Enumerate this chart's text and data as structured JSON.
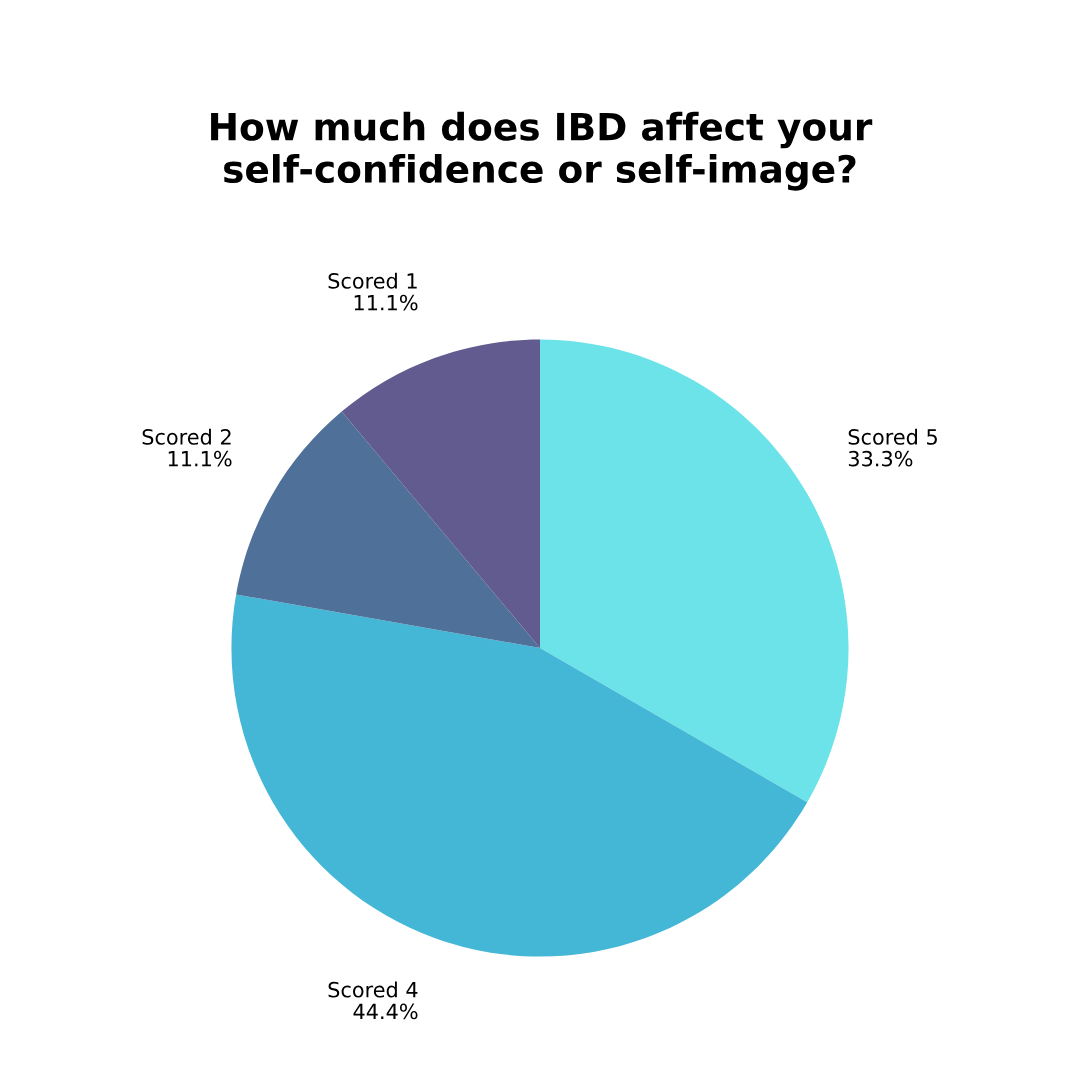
{
  "chart_data": {
    "type": "pie",
    "title": "How much does IBD affect your self-confidence or self-image?",
    "categories": [
      "Scored 5",
      "Scored 4",
      "Scored 2",
      "Scored 1"
    ],
    "values": [
      33.3,
      44.4,
      11.1,
      11.1
    ],
    "value_labels": [
      "33.3%",
      "44.4%",
      "11.1%",
      "11.1%"
    ],
    "colors": [
      "#6be3e8",
      "#44b7d6",
      "#4f7099",
      "#625b8f"
    ],
    "legend": false
  }
}
